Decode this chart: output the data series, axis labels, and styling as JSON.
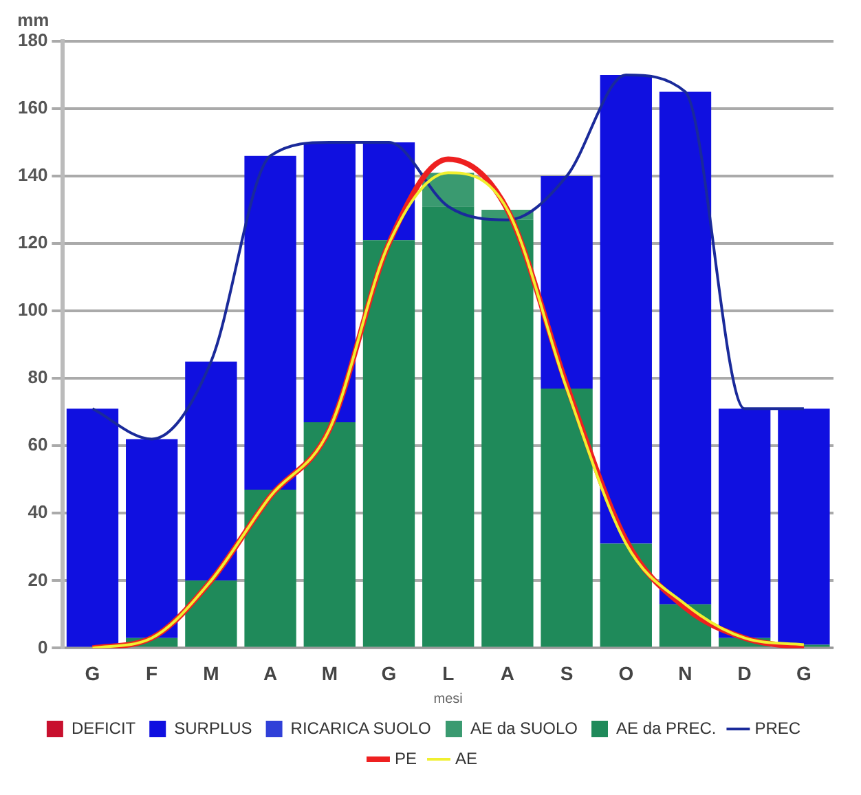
{
  "chart_data": {
    "type": "bar",
    "stacked": true,
    "xlabel": "mesi",
    "ylabel": "mm",
    "categories": [
      "G",
      "F",
      "M",
      "A",
      "M",
      "G",
      "L",
      "A",
      "S",
      "O",
      "N",
      "D",
      "G"
    ],
    "series": [
      {
        "name": "AE da PREC.",
        "color": "#1f8a5a",
        "values": [
          0,
          3,
          20,
          47,
          67,
          121,
          131,
          127,
          77,
          31,
          13,
          3,
          1
        ]
      },
      {
        "name": "AE da SUOLO",
        "color": "#3a9a70",
        "values": [
          0,
          0,
          0,
          0,
          0,
          0,
          10,
          3,
          0,
          0,
          0,
          0,
          0
        ]
      },
      {
        "name": "RICARICA SUOLO",
        "color": "#3040d8",
        "values": [
          0,
          0,
          0,
          0,
          0,
          0,
          0,
          0,
          0,
          0,
          0,
          0,
          0
        ]
      },
      {
        "name": "SURPLUS",
        "color": "#1010e0",
        "values": [
          71,
          59,
          65,
          99,
          83,
          29,
          0,
          0,
          63,
          139,
          152,
          68,
          70
        ]
      },
      {
        "name": "DEFICIT",
        "color": "#c8102e",
        "values": [
          0,
          0,
          0,
          0,
          0,
          0,
          0,
          0,
          0,
          0,
          0,
          0,
          0
        ]
      },
      {
        "name": "PREC",
        "type": "line",
        "color": "#1a2a9a",
        "values": [
          71,
          62,
          85,
          146,
          150,
          150,
          131,
          127,
          140,
          170,
          165,
          71,
          71
        ]
      },
      {
        "name": "PE",
        "type": "line",
        "color": "#ee2020",
        "values": [
          0,
          3,
          20,
          45,
          65,
          120,
          145,
          130,
          78,
          32,
          12,
          3,
          0
        ]
      },
      {
        "name": "AE",
        "type": "line",
        "color": "#f0f030",
        "values": [
          0,
          3,
          20,
          45,
          65,
          120,
          141,
          130,
          77,
          31,
          13,
          3,
          1
        ]
      }
    ],
    "ylim": [
      0,
      180
    ],
    "yticks": [
      0,
      20,
      40,
      60,
      80,
      100,
      120,
      140,
      160,
      180
    ],
    "grid": "y",
    "legend": "bottom",
    "marker": "none"
  }
}
